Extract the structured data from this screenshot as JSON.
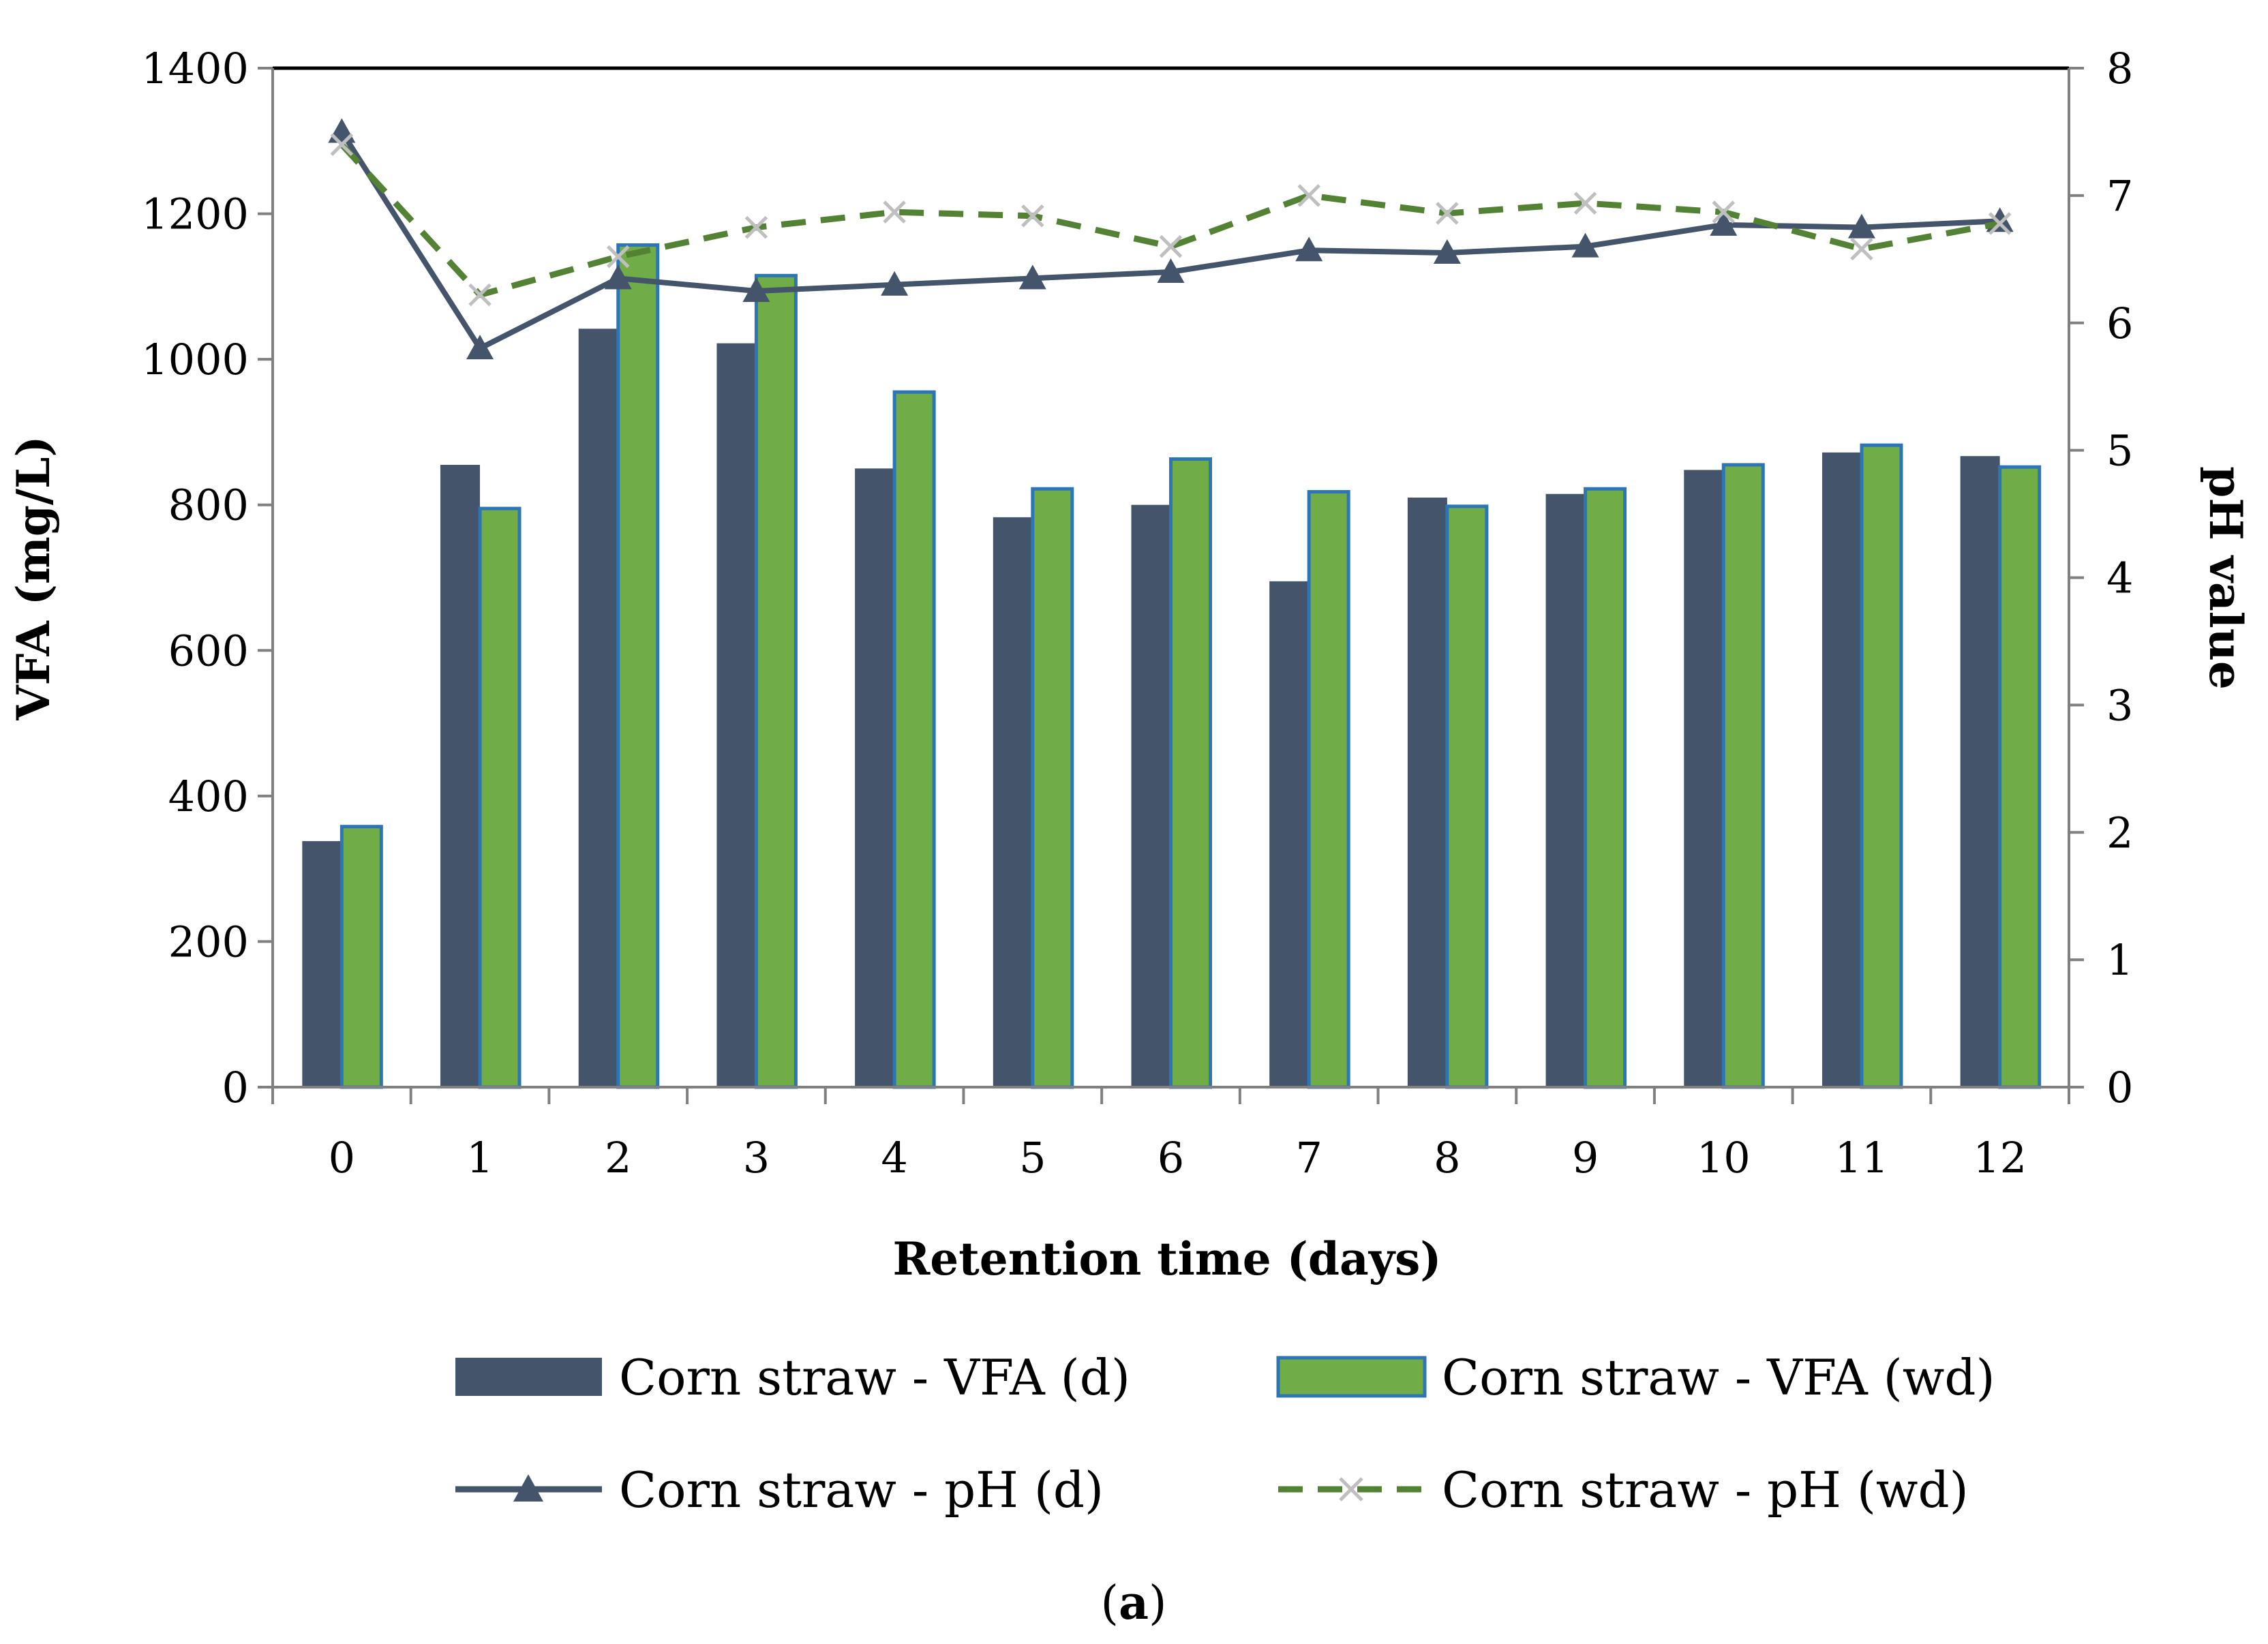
{
  "chart_data": {
    "type": "bar",
    "categories": [
      "0",
      "1",
      "2",
      "3",
      "4",
      "5",
      "6",
      "7",
      "8",
      "9",
      "10",
      "11",
      "12"
    ],
    "series": [
      {
        "name": "Corn straw - VFA (d)",
        "kind": "bar",
        "axis": "left",
        "color": "#44546a",
        "values": [
          338,
          855,
          1042,
          1022,
          850,
          783,
          800,
          695,
          810,
          815,
          848,
          872,
          867
        ]
      },
      {
        "name": "Corn straw - VFA (wd)",
        "kind": "bar",
        "axis": "left",
        "color": "#70ad47",
        "edge_color": "#2e75b6",
        "values": [
          358,
          795,
          1157,
          1115,
          955,
          822,
          863,
          818,
          798,
          822,
          855,
          882,
          852
        ]
      },
      {
        "name": "Corn straw - pH (d)",
        "kind": "line",
        "axis": "right",
        "color": "#44546a",
        "marker": "triangle",
        "values": [
          7.5,
          5.8,
          6.35,
          6.25,
          6.3,
          6.35,
          6.4,
          6.57,
          6.55,
          6.6,
          6.77,
          6.75,
          6.8
        ]
      },
      {
        "name": "Corn straw - pH (wd)",
        "kind": "line",
        "axis": "right",
        "color": "#548235",
        "marker_color": "#bfbfbf",
        "marker": "x",
        "dashed": true,
        "values": [
          7.4,
          6.22,
          6.52,
          6.75,
          6.87,
          6.84,
          6.6,
          7.0,
          6.86,
          6.94,
          6.87,
          6.58,
          6.78
        ]
      }
    ],
    "xlabel": "Retention time (days)",
    "ylabel": "VFA (mg/L)",
    "y2label": "pH value",
    "ylim": [
      0,
      1400
    ],
    "y2lim": [
      0,
      8
    ],
    "yticks": [
      "0",
      "200",
      "400",
      "600",
      "800",
      "1000",
      "1200",
      "1400"
    ],
    "y2ticks": [
      "0",
      "1",
      "2",
      "3",
      "4",
      "5",
      "6",
      "7",
      "8"
    ],
    "legend_position": "bottom",
    "grid": false,
    "caption_open": "(",
    "caption_letter": "a",
    "caption_close": ")"
  }
}
